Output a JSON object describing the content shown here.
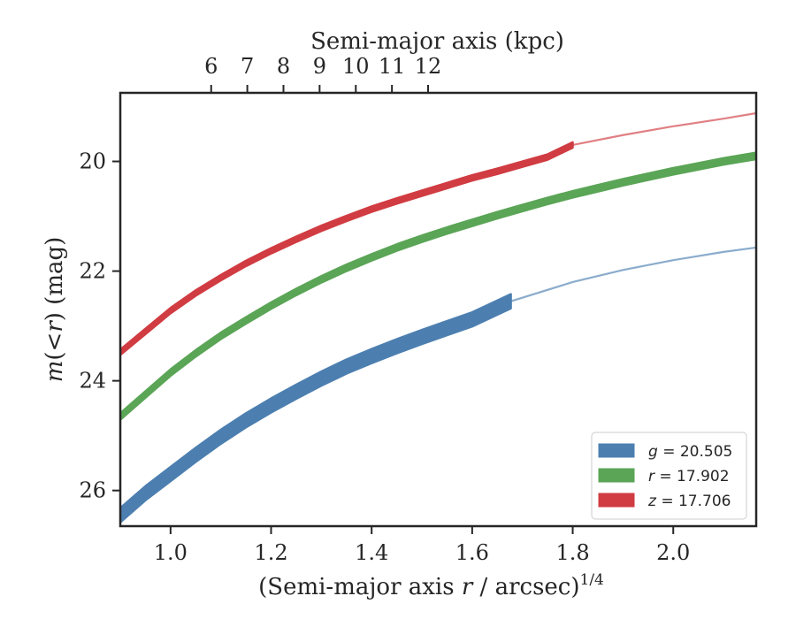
{
  "chart_data": {
    "type": "line",
    "xlabel": "(Semi-major axis r / arcsec)^1/4",
    "xlabel_parts": {
      "pre": "(Semi-major axis ",
      "var": "r",
      "mid": " / arcsec)",
      "sup": "1/4"
    },
    "ylabel": "m(<r) (mag)",
    "ylabel_parts": {
      "var": "m",
      "open": "(",
      "lt": "<",
      "var2": "r",
      "close": ")",
      "unit": " (mag)"
    },
    "x2label": "Semi-major axis (kpc)",
    "xlim": [
      0.9,
      2.165
    ],
    "ylim": [
      26.65,
      18.75
    ],
    "y_inverted": true,
    "xticks": [
      1.0,
      1.2,
      1.4,
      1.6,
      1.8,
      2.0
    ],
    "xtick_labels": [
      "1.0",
      "1.2",
      "1.4",
      "1.6",
      "1.8",
      "2.0"
    ],
    "yticks": [
      20,
      22,
      24,
      26
    ],
    "ytick_labels": [
      "20",
      "22",
      "24",
      "26"
    ],
    "x2ticks": [
      6,
      7,
      8,
      9,
      10,
      11,
      12
    ],
    "x2tick_labels": [
      "6",
      "7",
      "8",
      "9",
      "10",
      "11",
      "12"
    ],
    "x2_tick_positions_bottom_units": [
      1.0808,
      1.1527,
      1.2246,
      1.2965,
      1.3685,
      1.4404,
      1.5123
    ],
    "legend": {
      "placement": "bottom-right"
    },
    "grid": false,
    "series": [
      {
        "name": "g = 20.505",
        "legend_var": "g",
        "legend_value": "20.505",
        "color": "#4c7fb0",
        "band_width_mag": 0.26,
        "measured_x": [
          0.9,
          0.95,
          1.0,
          1.05,
          1.1,
          1.15,
          1.2,
          1.25,
          1.3,
          1.35,
          1.4,
          1.45,
          1.5,
          1.55,
          1.6,
          1.677
        ],
        "measured_y": [
          26.45,
          26.05,
          25.7,
          25.35,
          25.02,
          24.72,
          24.45,
          24.2,
          23.96,
          23.74,
          23.55,
          23.37,
          23.2,
          23.04,
          22.88,
          22.55
        ],
        "model_x": [
          1.677,
          1.8,
          1.9,
          2.0,
          2.1,
          2.165
        ],
        "model_y": [
          22.55,
          22.2,
          21.98,
          21.8,
          21.65,
          21.57
        ]
      },
      {
        "name": "r = 17.902",
        "legend_var": "r",
        "legend_value": "17.902",
        "color": "#5aa556",
        "band_width_mag": 0.12,
        "measured_x": [
          0.9,
          0.95,
          1.0,
          1.05,
          1.1,
          1.15,
          1.2,
          1.25,
          1.3,
          1.35,
          1.4,
          1.45,
          1.5,
          1.55,
          1.6,
          1.65,
          1.7,
          1.75,
          1.8,
          1.85,
          1.9,
          1.95,
          2.0,
          2.05,
          2.1,
          2.165
        ],
        "measured_y": [
          24.65,
          24.25,
          23.85,
          23.5,
          23.18,
          22.9,
          22.63,
          22.38,
          22.15,
          21.94,
          21.75,
          21.57,
          21.41,
          21.26,
          21.12,
          20.98,
          20.85,
          20.72,
          20.6,
          20.49,
          20.38,
          20.28,
          20.18,
          20.09,
          20.0,
          19.9
        ],
        "model_x": [],
        "model_y": []
      },
      {
        "name": "z = 17.706",
        "legend_var": "z",
        "legend_value": "17.706",
        "color": "#d03c42",
        "band_width_mag": 0.1,
        "measured_x": [
          0.9,
          0.95,
          1.0,
          1.05,
          1.1,
          1.15,
          1.2,
          1.25,
          1.3,
          1.35,
          1.4,
          1.45,
          1.5,
          1.55,
          1.6,
          1.65,
          1.7,
          1.75,
          1.8
        ],
        "measured_y": [
          23.48,
          23.1,
          22.72,
          22.4,
          22.12,
          21.86,
          21.63,
          21.42,
          21.22,
          21.04,
          20.87,
          20.72,
          20.58,
          20.44,
          20.3,
          20.18,
          20.05,
          19.92,
          19.7
        ],
        "model_x": [
          1.8,
          1.9,
          2.0,
          2.1,
          2.165
        ],
        "model_y": [
          19.7,
          19.52,
          19.36,
          19.22,
          19.12
        ]
      }
    ]
  }
}
